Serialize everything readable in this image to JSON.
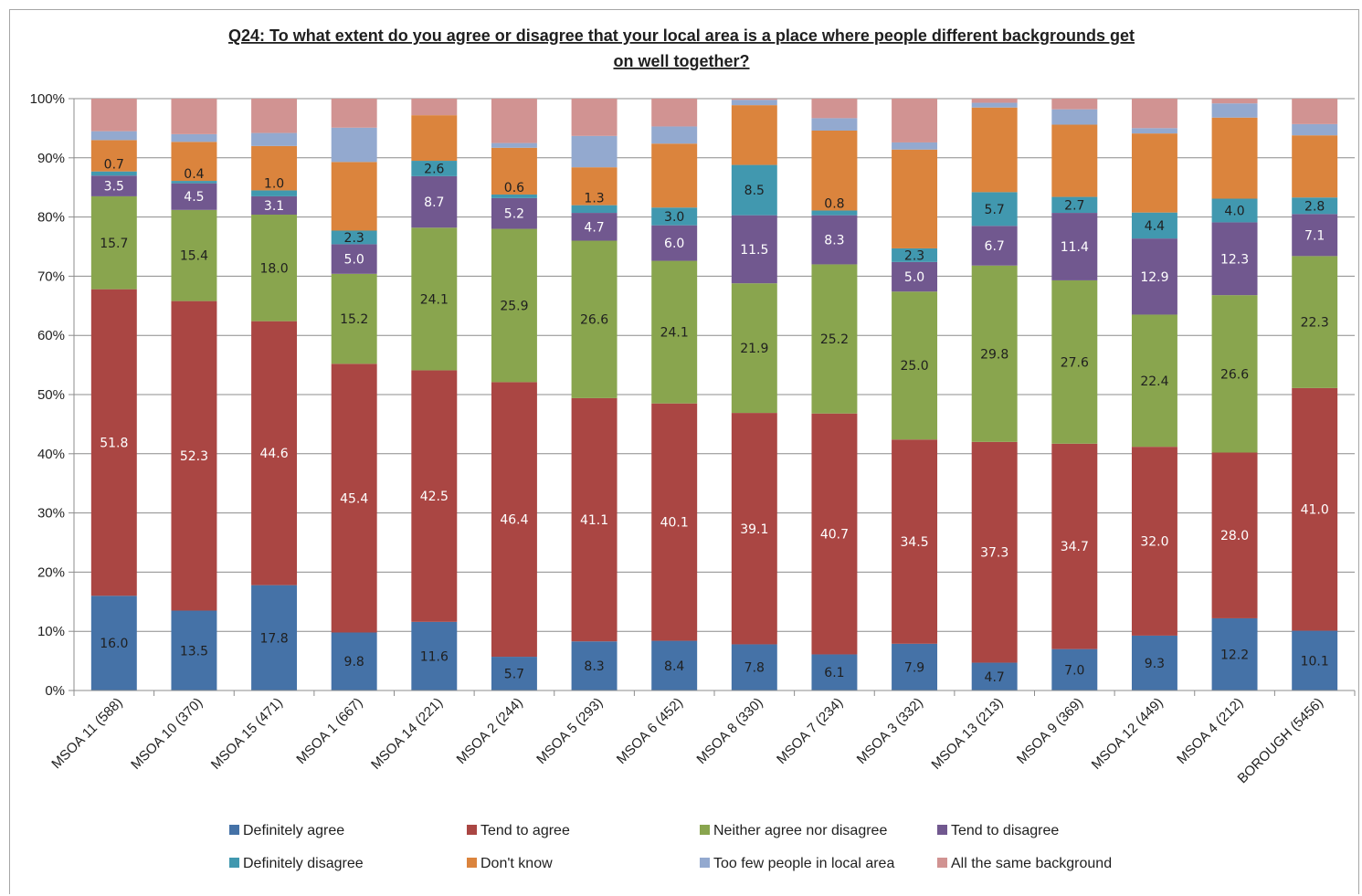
{
  "chart_data": {
    "type": "bar",
    "stacked": true,
    "percent_stacked": true,
    "title": "Q24: To what extent do you agree or disagree that your local area is a place where people different backgrounds get on well together?",
    "title_lines": [
      "Q24: To what extent do you agree or disagree that your local area is a place where people different backgrounds get",
      "on well together?"
    ],
    "ylim": [
      0,
      100
    ],
    "yticks": [
      "0%",
      "10%",
      "20%",
      "30%",
      "40%",
      "50%",
      "60%",
      "70%",
      "80%",
      "90%",
      "100%"
    ],
    "grid": true,
    "legend_position": "bottom",
    "categories": [
      "MSOA 11 (588)",
      "MSOA 10 (370)",
      "MSOA 15 (471)",
      "MSOA 1 (667)",
      "MSOA 14 (221)",
      "MSOA 2 (244)",
      "MSOA 5 (293)",
      "MSOA 6 (452)",
      "MSOA 8 (330)",
      "MSOA 7 (234)",
      "MSOA 3 (332)",
      "MSOA 13 (213)",
      "MSOA 9 (369)",
      "MSOA 12 (449)",
      "MSOA 4 (212)",
      "BOROUGH (5456)"
    ],
    "series": [
      {
        "name": "Definitely agree",
        "color": "#4572a7",
        "label_color": "#1f1f1f",
        "values": [
          16.0,
          13.5,
          17.8,
          9.8,
          11.6,
          5.7,
          8.3,
          8.4,
          7.8,
          6.1,
          7.9,
          4.7,
          7.0,
          9.3,
          12.2,
          10.1
        ],
        "labels": [
          "16.0",
          "13.5",
          "17.8",
          "9.8",
          "11.6",
          "5.7",
          "8.3",
          "8.4",
          "7.8",
          "6.1",
          "7.9",
          "4.7",
          "7.0",
          "9.3",
          "12.2",
          "10.1"
        ]
      },
      {
        "name": "Tend to agree",
        "color": "#aa4643",
        "label_color": "#ffffff",
        "values": [
          51.8,
          52.3,
          44.6,
          45.4,
          42.5,
          46.4,
          41.1,
          40.1,
          39.1,
          40.7,
          34.5,
          37.3,
          34.7,
          32.0,
          28.0,
          41.0
        ],
        "labels": [
          "51.8",
          "52.3",
          "44.6",
          "45.4",
          "42.5",
          "46.4",
          "41.1",
          "40.1",
          "39.1",
          "40.7",
          "34.5",
          "37.3",
          "34.7",
          "32.0",
          "28.0",
          "41.0"
        ]
      },
      {
        "name": "Neither agree nor disagree",
        "color": "#89a54e",
        "label_color": "#1f1f1f",
        "values": [
          15.7,
          15.4,
          18.0,
          15.2,
          24.1,
          25.9,
          26.6,
          24.1,
          21.9,
          25.2,
          25.0,
          29.8,
          27.6,
          22.4,
          26.6,
          22.3
        ],
        "labels": [
          "15.7",
          "15.4",
          "18.0",
          "15.2",
          "24.1",
          "25.9",
          "26.6",
          "24.1",
          "21.9",
          "25.2",
          "25.0",
          "29.8",
          "27.6",
          "22.4",
          "26.6",
          "22.3"
        ]
      },
      {
        "name": "Tend to disagree",
        "color": "#71588f",
        "label_color": "#ffffff",
        "values": [
          3.5,
          4.5,
          3.1,
          5.0,
          8.7,
          5.2,
          4.7,
          6.0,
          11.5,
          8.3,
          5.0,
          6.7,
          11.4,
          12.9,
          12.3,
          7.1
        ],
        "labels": [
          "3.5",
          "4.5",
          "3.1",
          "5.0",
          "8.7",
          "5.2",
          "4.7",
          "6.0",
          "11.5",
          "8.3",
          "5.0",
          "6.7",
          "11.4",
          "12.9",
          "12.3",
          "7.1"
        ]
      },
      {
        "name": "Definitely disagree",
        "color": "#4198af",
        "label_color": "#1f1f1f",
        "values": [
          0.7,
          0.4,
          1.0,
          2.3,
          2.6,
          0.6,
          1.3,
          3.0,
          8.5,
          0.8,
          2.3,
          5.7,
          2.7,
          4.4,
          4.0,
          2.8
        ],
        "labels": [
          "0.7",
          "0.4",
          "1.0",
          "2.3",
          "2.6",
          "0.6",
          "1.3",
          "3.0",
          "8.5",
          "0.8",
          "2.3",
          "5.7",
          "2.7",
          "4.4",
          "4.0",
          "2.8"
        ]
      },
      {
        "name": "Don't know",
        "color": "#db843d",
        "label_color": "#1f1f1f",
        "values": [
          5.3,
          6.6,
          7.5,
          11.6,
          7.7,
          7.9,
          6.4,
          10.8,
          10.1,
          13.5,
          16.7,
          14.3,
          12.2,
          13.4,
          13.7,
          10.5
        ],
        "labels": []
      },
      {
        "name": "Too few people in local area",
        "color": "#93a9cf",
        "label_color": "#1f1f1f",
        "values": [
          1.5,
          1.3,
          2.2,
          5.8,
          0.0,
          0.8,
          5.3,
          2.9,
          0.9,
          2.1,
          1.2,
          0.8,
          2.6,
          0.9,
          2.4,
          1.9
        ],
        "labels": []
      },
      {
        "name": "All the same background",
        "color": "#d19392",
        "label_color": "#1f1f1f",
        "values": [
          5.5,
          6.0,
          5.8,
          4.9,
          2.8,
          7.5,
          6.3,
          4.7,
          0.2,
          3.3,
          7.4,
          0.7,
          1.8,
          5.0,
          0.8,
          4.3
        ],
        "labels": []
      }
    ]
  }
}
